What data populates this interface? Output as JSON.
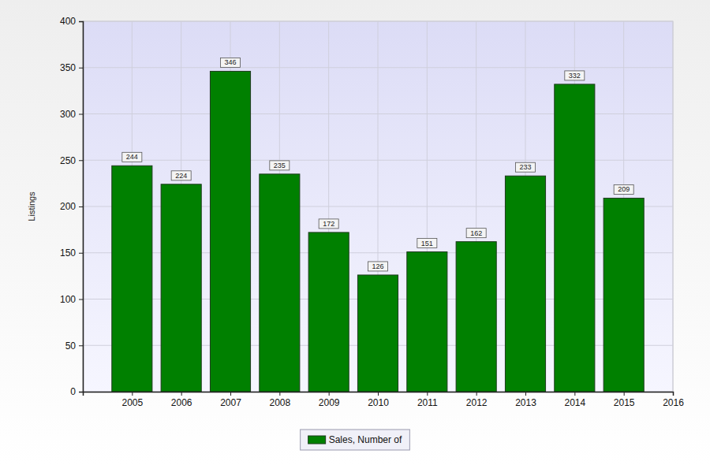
{
  "chart_data": {
    "type": "bar",
    "y_label": "Listings",
    "x": [
      2005,
      2006,
      2007,
      2008,
      2009,
      2010,
      2011,
      2012,
      2013,
      2014,
      2015
    ],
    "series": [
      {
        "name": "Sales, Number of",
        "color": "#008000",
        "values": [
          244,
          224,
          346,
          235,
          172,
          126,
          151,
          162,
          233,
          332,
          209
        ]
      }
    ],
    "xlim": [
      2004,
      2016
    ],
    "xticks": [
      2005,
      2006,
      2007,
      2008,
      2009,
      2010,
      2011,
      2012,
      2013,
      2014,
      2015,
      2016
    ],
    "ylim": [
      0,
      400
    ],
    "yticks": [
      0,
      50,
      100,
      150,
      200,
      250,
      300,
      350,
      400
    ],
    "grid": true,
    "data_labels": true,
    "legend": "bottom"
  }
}
